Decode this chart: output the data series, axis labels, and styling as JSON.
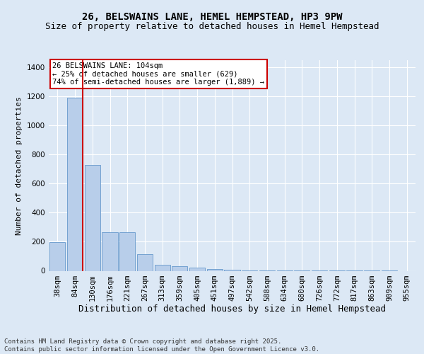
{
  "title1": "26, BELSWAINS LANE, HEMEL HEMPSTEAD, HP3 9PW",
  "title2": "Size of property relative to detached houses in Hemel Hempstead",
  "xlabel": "Distribution of detached houses by size in Hemel Hempstead",
  "ylabel": "Number of detached properties",
  "categories": [
    "38sqm",
    "84sqm",
    "130sqm",
    "176sqm",
    "221sqm",
    "267sqm",
    "313sqm",
    "359sqm",
    "405sqm",
    "451sqm",
    "497sqm",
    "542sqm",
    "588sqm",
    "634sqm",
    "680sqm",
    "726sqm",
    "772sqm",
    "817sqm",
    "863sqm",
    "909sqm",
    "955sqm"
  ],
  "values": [
    195,
    1190,
    730,
    265,
    265,
    115,
    40,
    30,
    20,
    10,
    5,
    3,
    3,
    2,
    1,
    1,
    1,
    1,
    1,
    1,
    0
  ],
  "bar_color": "#b8ceea",
  "bar_edge_color": "#6699cc",
  "red_line_x": 1.43,
  "annotation_text": "26 BELSWAINS LANE: 104sqm\n← 25% of detached houses are smaller (629)\n74% of semi-detached houses are larger (1,889) →",
  "annotation_box_facecolor": "#ffffff",
  "annotation_box_edgecolor": "#cc0000",
  "ylim": [
    0,
    1450
  ],
  "yticks": [
    0,
    200,
    400,
    600,
    800,
    1000,
    1200,
    1400
  ],
  "bg_color": "#dce8f5",
  "plot_bg_color": "#dce8f5",
  "grid_color": "#ffffff",
  "footer": "Contains HM Land Registry data © Crown copyright and database right 2025.\nContains public sector information licensed under the Open Government Licence v3.0.",
  "title1_fontsize": 10,
  "title2_fontsize": 9,
  "xlabel_fontsize": 9,
  "ylabel_fontsize": 8,
  "tick_fontsize": 7.5,
  "footer_fontsize": 6.5,
  "ann_fontsize": 7.5
}
